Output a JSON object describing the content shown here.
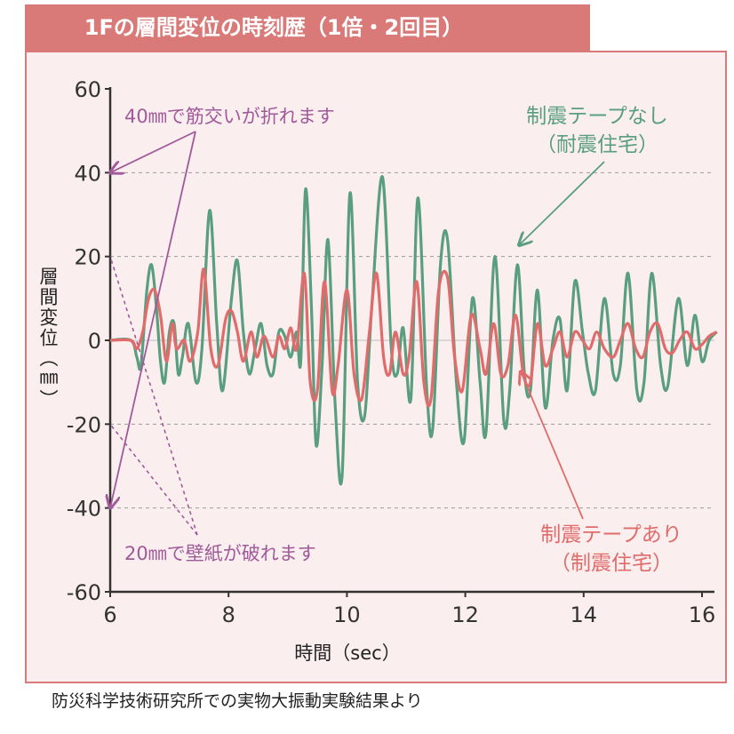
{
  "header": {
    "title": "1Fの層間変位の時刻歴（1倍・2回目）"
  },
  "footer": {
    "note": "防災科学技術研究所での実物大振動実験結果より"
  },
  "colors": {
    "banner": "#d97a78",
    "panel_bg": "#fbeeee",
    "green": "#5a9e80",
    "red": "#e06b6b",
    "purple": "#a05a9a",
    "axis": "#333333"
  },
  "chart_data": {
    "type": "line",
    "title": "1Fの層間変位の時刻歴（1倍・2回目）",
    "xlabel": "時間（sec）",
    "ylabel": "層間変位（㎜）",
    "xlim": [
      6,
      16.3
    ],
    "ylim": [
      -60,
      60
    ],
    "x_ticks": [
      6,
      8,
      10,
      12,
      14,
      16
    ],
    "y_ticks": [
      60,
      40,
      20,
      0,
      -20,
      -40,
      -60
    ],
    "x_tick_labels": [
      "6",
      "8",
      "10",
      "12",
      "14",
      "16"
    ],
    "y_tick_labels": [
      "60",
      "40",
      "20",
      "0",
      "-20",
      "-40",
      "-60"
    ],
    "grid": "dashed horizontal at ±20 and ±40",
    "series": [
      {
        "name": "制震テープなし（耐震住宅）",
        "color": "#5a9e80",
        "points": [
          [
            6.0,
            0
          ],
          [
            6.35,
            0
          ],
          [
            6.45,
            -4
          ],
          [
            6.52,
            -6
          ],
          [
            6.62,
            12
          ],
          [
            6.7,
            18
          ],
          [
            6.78,
            8
          ],
          [
            6.85,
            -5
          ],
          [
            6.92,
            -10
          ],
          [
            7.0,
            2
          ],
          [
            7.08,
            4
          ],
          [
            7.15,
            -8
          ],
          [
            7.22,
            -4
          ],
          [
            7.32,
            4
          ],
          [
            7.45,
            -10
          ],
          [
            7.55,
            -2
          ],
          [
            7.68,
            31
          ],
          [
            7.8,
            4
          ],
          [
            7.9,
            -12
          ],
          [
            8.05,
            10
          ],
          [
            8.15,
            19
          ],
          [
            8.25,
            2
          ],
          [
            8.35,
            -8
          ],
          [
            8.45,
            -2
          ],
          [
            8.55,
            4
          ],
          [
            8.65,
            -6
          ],
          [
            8.75,
            -8
          ],
          [
            8.85,
            2
          ],
          [
            8.95,
            1
          ],
          [
            9.05,
            -4
          ],
          [
            9.15,
            2
          ],
          [
            9.22,
            -5
          ],
          [
            9.3,
            36
          ],
          [
            9.4,
            8
          ],
          [
            9.48,
            -25
          ],
          [
            9.58,
            -6
          ],
          [
            9.68,
            24
          ],
          [
            9.8,
            -15
          ],
          [
            9.92,
            -32
          ],
          [
            10.05,
            35
          ],
          [
            10.18,
            -10
          ],
          [
            10.3,
            -18
          ],
          [
            10.42,
            8
          ],
          [
            10.6,
            39
          ],
          [
            10.75,
            -2
          ],
          [
            10.85,
            -8
          ],
          [
            10.95,
            3
          ],
          [
            11.08,
            -14
          ],
          [
            11.2,
            34
          ],
          [
            11.35,
            -12
          ],
          [
            11.45,
            -21
          ],
          [
            11.58,
            18
          ],
          [
            11.7,
            24
          ],
          [
            11.85,
            -10
          ],
          [
            11.98,
            -24
          ],
          [
            12.12,
            10
          ],
          [
            12.25,
            -10
          ],
          [
            12.35,
            -22
          ],
          [
            12.5,
            20
          ],
          [
            12.65,
            -19
          ],
          [
            12.75,
            -12
          ],
          [
            12.88,
            18
          ],
          [
            13.0,
            -8
          ],
          [
            13.1,
            -12
          ],
          [
            13.22,
            12
          ],
          [
            13.35,
            -16
          ],
          [
            13.48,
            0
          ],
          [
            13.6,
            5
          ],
          [
            13.72,
            -12
          ],
          [
            13.85,
            14
          ],
          [
            13.98,
            2
          ],
          [
            14.08,
            -8
          ],
          [
            14.2,
            -12
          ],
          [
            14.35,
            10
          ],
          [
            14.5,
            -8
          ],
          [
            14.62,
            -6
          ],
          [
            14.75,
            16
          ],
          [
            14.9,
            -12
          ],
          [
            15.02,
            -10
          ],
          [
            15.15,
            16
          ],
          [
            15.3,
            -6
          ],
          [
            15.42,
            -11
          ],
          [
            15.6,
            10
          ],
          [
            15.75,
            -6
          ],
          [
            15.88,
            6
          ],
          [
            16.0,
            -5
          ],
          [
            16.12,
            0
          ],
          [
            16.25,
            2
          ]
        ]
      },
      {
        "name": "制震テープあり（制震住宅）",
        "color": "#e06b6b",
        "points": [
          [
            6.0,
            0
          ],
          [
            6.35,
            0
          ],
          [
            6.45,
            -2
          ],
          [
            6.55,
            2
          ],
          [
            6.65,
            10
          ],
          [
            6.75,
            12
          ],
          [
            6.85,
            6
          ],
          [
            6.95,
            -5
          ],
          [
            7.05,
            4
          ],
          [
            7.12,
            -2
          ],
          [
            7.25,
            0
          ],
          [
            7.35,
            -5
          ],
          [
            7.48,
            2
          ],
          [
            7.58,
            17
          ],
          [
            7.7,
            -2
          ],
          [
            7.82,
            -6
          ],
          [
            7.95,
            5
          ],
          [
            8.05,
            7
          ],
          [
            8.15,
            2
          ],
          [
            8.25,
            -5
          ],
          [
            8.38,
            2
          ],
          [
            8.48,
            -4
          ],
          [
            8.6,
            1
          ],
          [
            8.75,
            -4
          ],
          [
            8.85,
            1
          ],
          [
            8.95,
            -2
          ],
          [
            9.05,
            3
          ],
          [
            9.15,
            -2
          ],
          [
            9.28,
            16
          ],
          [
            9.38,
            -10
          ],
          [
            9.5,
            -12
          ],
          [
            9.62,
            14
          ],
          [
            9.75,
            -12
          ],
          [
            9.85,
            -6
          ],
          [
            10.0,
            12
          ],
          [
            10.12,
            -8
          ],
          [
            10.25,
            -14
          ],
          [
            10.38,
            2
          ],
          [
            10.5,
            16
          ],
          [
            10.62,
            -4
          ],
          [
            10.72,
            -8
          ],
          [
            10.82,
            2
          ],
          [
            10.95,
            -8
          ],
          [
            11.05,
            -4
          ],
          [
            11.18,
            14
          ],
          [
            11.3,
            -10
          ],
          [
            11.42,
            -14
          ],
          [
            11.55,
            12
          ],
          [
            11.7,
            15
          ],
          [
            11.82,
            -4
          ],
          [
            11.95,
            -12
          ],
          [
            12.1,
            6
          ],
          [
            12.25,
            -2
          ],
          [
            12.35,
            -8
          ],
          [
            12.48,
            4
          ],
          [
            12.6,
            -8
          ],
          [
            12.72,
            -6
          ],
          [
            12.85,
            6
          ],
          [
            12.98,
            -8
          ],
          [
            13.1,
            -10
          ],
          [
            13.22,
            4
          ],
          [
            13.35,
            -6
          ],
          [
            13.48,
            -2
          ],
          [
            13.6,
            2
          ],
          [
            13.72,
            -4
          ],
          [
            13.85,
            2
          ],
          [
            13.98,
            0
          ],
          [
            14.1,
            -2
          ],
          [
            14.22,
            2
          ],
          [
            14.35,
            -2
          ],
          [
            14.5,
            -4
          ],
          [
            14.62,
            0
          ],
          [
            14.75,
            4
          ],
          [
            14.88,
            -2
          ],
          [
            15.0,
            -4
          ],
          [
            15.12,
            2
          ],
          [
            15.25,
            4
          ],
          [
            15.38,
            -2
          ],
          [
            15.5,
            -3
          ],
          [
            15.62,
            0
          ],
          [
            15.75,
            2
          ],
          [
            15.88,
            -2
          ],
          [
            16.0,
            -1
          ],
          [
            16.12,
            1
          ],
          [
            16.25,
            2
          ]
        ]
      }
    ],
    "annotations": [
      {
        "text": "40㎜で筋交いが折れます",
        "color": "#a05a9a"
      },
      {
        "text": "20㎜で壁紙が破れます",
        "color": "#a05a9a"
      },
      {
        "text": "制震テープなし",
        "color": "#5a9e80"
      },
      {
        "text": "（耐震住宅）",
        "color": "#5a9e80"
      },
      {
        "text": "制震テープあり",
        "color": "#e06b6b"
      },
      {
        "text": "（制震住宅）",
        "color": "#e06b6b"
      }
    ]
  }
}
